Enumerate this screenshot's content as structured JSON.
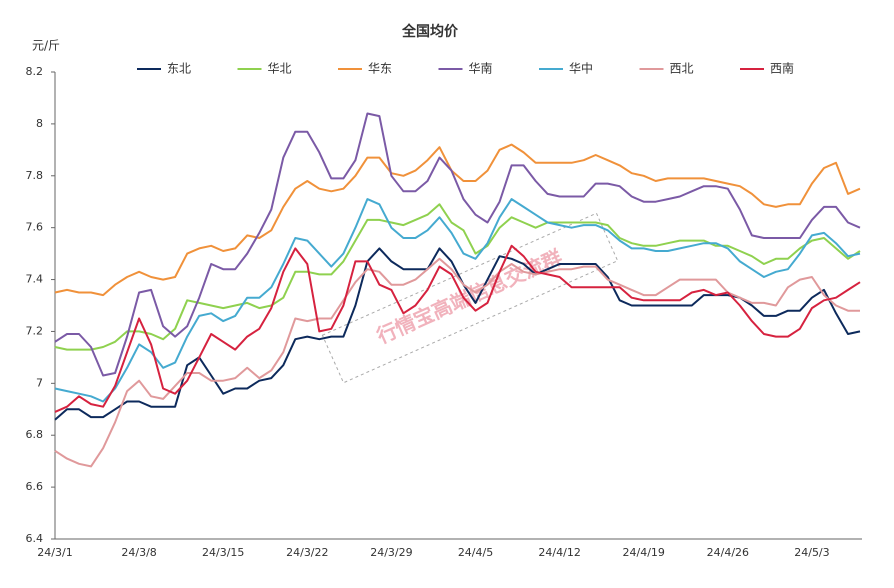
{
  "chart_data": {
    "type": "line",
    "title": "全国均价",
    "y_label": "元/斤",
    "annotation": "行情宝高端信息交流群",
    "categories": [
      "24/3/1",
      null,
      null,
      null,
      null,
      null,
      null,
      "24/3/8",
      null,
      null,
      null,
      null,
      null,
      null,
      "24/3/15",
      null,
      null,
      null,
      null,
      null,
      null,
      "24/3/22",
      null,
      null,
      null,
      null,
      null,
      null,
      "24/3/29",
      null,
      null,
      null,
      null,
      null,
      null,
      "24/4/5",
      null,
      null,
      null,
      null,
      null,
      null,
      "24/4/12",
      null,
      null,
      null,
      null,
      null,
      null,
      "24/4/19",
      null,
      null,
      null,
      null,
      null,
      null,
      "24/4/26",
      null,
      null,
      null,
      null,
      null,
      null,
      "24/5/3",
      null,
      null,
      null,
      null
    ],
    "ylim": [
      6.4,
      8.2
    ],
    "yticks": [
      6.4,
      6.6,
      6.8,
      7,
      7.2,
      7.4,
      7.6,
      7.8,
      8,
      8.2
    ],
    "grid": false,
    "legend": "top",
    "series": [
      {
        "name": "东北",
        "color": "#0d2a5c",
        "values": [
          6.86,
          6.9,
          6.9,
          6.87,
          6.87,
          6.9,
          6.93,
          6.93,
          6.91,
          6.91,
          6.91,
          7.07,
          7.1,
          7.03,
          6.96,
          6.98,
          6.98,
          7.01,
          7.02,
          7.07,
          7.17,
          7.18,
          7.17,
          7.18,
          7.18,
          7.3,
          7.47,
          7.52,
          7.47,
          7.44,
          7.44,
          7.44,
          7.52,
          7.47,
          7.38,
          7.31,
          7.4,
          7.49,
          7.48,
          7.46,
          7.42,
          7.44,
          7.46,
          7.46,
          7.46,
          7.46,
          7.41,
          7.32,
          7.3,
          7.3,
          7.3,
          7.3,
          7.3,
          7.3,
          7.34,
          7.34,
          7.34,
          7.33,
          7.3,
          7.26,
          7.26,
          7.28,
          7.28,
          7.33,
          7.36,
          7.27,
          7.19,
          7.2
        ]
      },
      {
        "name": "华北",
        "color": "#8fd14f",
        "values": [
          7.14,
          7.13,
          7.13,
          7.13,
          7.14,
          7.16,
          7.2,
          7.2,
          7.19,
          7.17,
          7.21,
          7.32,
          7.31,
          7.3,
          7.29,
          7.3,
          7.31,
          7.29,
          7.3,
          7.33,
          7.43,
          7.43,
          7.42,
          7.42,
          7.47,
          7.55,
          7.63,
          7.63,
          7.62,
          7.61,
          7.63,
          7.65,
          7.69,
          7.62,
          7.59,
          7.5,
          7.53,
          7.6,
          7.64,
          7.62,
          7.6,
          7.62,
          7.62,
          7.62,
          7.62,
          7.62,
          7.61,
          7.56,
          7.54,
          7.53,
          7.53,
          7.54,
          7.55,
          7.55,
          7.55,
          7.53,
          7.53,
          7.51,
          7.49,
          7.46,
          7.48,
          7.48,
          7.52,
          7.55,
          7.56,
          7.52,
          7.48,
          7.51
        ]
      },
      {
        "name": "华东",
        "color": "#f0913a",
        "values": [
          7.35,
          7.36,
          7.35,
          7.35,
          7.34,
          7.38,
          7.41,
          7.43,
          7.41,
          7.4,
          7.41,
          7.5,
          7.52,
          7.53,
          7.51,
          7.52,
          7.57,
          7.56,
          7.59,
          7.68,
          7.75,
          7.78,
          7.75,
          7.74,
          7.75,
          7.8,
          7.87,
          7.87,
          7.81,
          7.8,
          7.82,
          7.86,
          7.91,
          7.82,
          7.78,
          7.78,
          7.82,
          7.9,
          7.92,
          7.89,
          7.85,
          7.85,
          7.85,
          7.85,
          7.86,
          7.88,
          7.86,
          7.84,
          7.81,
          7.8,
          7.78,
          7.79,
          7.79,
          7.79,
          7.79,
          7.78,
          7.77,
          7.76,
          7.73,
          7.69,
          7.68,
          7.69,
          7.69,
          7.77,
          7.83,
          7.85,
          7.73,
          7.75
        ]
      },
      {
        "name": "华南",
        "color": "#7b5aa6",
        "values": [
          7.16,
          7.19,
          7.19,
          7.14,
          7.03,
          7.04,
          7.18,
          7.35,
          7.36,
          7.22,
          7.18,
          7.22,
          7.33,
          7.46,
          7.44,
          7.44,
          7.5,
          7.58,
          7.67,
          7.87,
          7.97,
          7.97,
          7.89,
          7.79,
          7.79,
          7.86,
          8.04,
          8.03,
          7.8,
          7.74,
          7.74,
          7.78,
          7.87,
          7.82,
          7.71,
          7.65,
          7.62,
          7.7,
          7.84,
          7.84,
          7.78,
          7.73,
          7.72,
          7.72,
          7.72,
          7.77,
          7.77,
          7.76,
          7.72,
          7.7,
          7.7,
          7.71,
          7.72,
          7.74,
          7.76,
          7.76,
          7.75,
          7.67,
          7.57,
          7.56,
          7.56,
          7.56,
          7.56,
          7.63,
          7.68,
          7.68,
          7.62,
          7.6
        ]
      },
      {
        "name": "华中",
        "color": "#45aad0",
        "values": [
          6.98,
          6.97,
          6.96,
          6.95,
          6.93,
          6.98,
          7.06,
          7.15,
          7.12,
          7.06,
          7.08,
          7.18,
          7.26,
          7.27,
          7.24,
          7.26,
          7.33,
          7.33,
          7.37,
          7.46,
          7.56,
          7.55,
          7.5,
          7.45,
          7.5,
          7.6,
          7.71,
          7.69,
          7.6,
          7.56,
          7.56,
          7.59,
          7.64,
          7.58,
          7.5,
          7.48,
          7.54,
          7.64,
          7.71,
          7.68,
          7.65,
          7.62,
          7.61,
          7.6,
          7.61,
          7.61,
          7.59,
          7.55,
          7.52,
          7.52,
          7.51,
          7.51,
          7.52,
          7.53,
          7.54,
          7.54,
          7.52,
          7.47,
          7.44,
          7.41,
          7.43,
          7.44,
          7.5,
          7.57,
          7.58,
          7.54,
          7.49,
          7.5
        ]
      },
      {
        "name": "西北",
        "color": "#e0999b",
        "values": [
          6.74,
          6.71,
          6.69,
          6.68,
          6.75,
          6.85,
          6.97,
          7.01,
          6.95,
          6.94,
          6.99,
          7.04,
          7.04,
          7.01,
          7.01,
          7.02,
          7.06,
          7.02,
          7.05,
          7.12,
          7.25,
          7.24,
          7.25,
          7.25,
          7.32,
          7.39,
          7.44,
          7.43,
          7.38,
          7.38,
          7.4,
          7.44,
          7.48,
          7.44,
          7.38,
          7.35,
          7.38,
          7.43,
          7.46,
          7.43,
          7.42,
          7.43,
          7.44,
          7.44,
          7.45,
          7.45,
          7.4,
          7.38,
          7.36,
          7.34,
          7.34,
          7.37,
          7.4,
          7.4,
          7.4,
          7.4,
          7.35,
          7.33,
          7.31,
          7.31,
          7.3,
          7.37,
          7.4,
          7.41,
          7.34,
          7.3,
          7.28,
          7.28
        ]
      },
      {
        "name": "西南",
        "color": "#d6223f",
        "values": [
          6.89,
          6.91,
          6.95,
          6.92,
          6.91,
          6.99,
          7.12,
          7.25,
          7.15,
          6.98,
          6.96,
          7.01,
          7.1,
          7.19,
          7.16,
          7.13,
          7.18,
          7.21,
          7.29,
          7.43,
          7.52,
          7.46,
          7.2,
          7.21,
          7.3,
          7.47,
          7.47,
          7.38,
          7.36,
          7.27,
          7.3,
          7.36,
          7.45,
          7.42,
          7.33,
          7.28,
          7.31,
          7.43,
          7.53,
          7.49,
          7.43,
          7.42,
          7.41,
          7.37,
          7.37,
          7.37,
          7.37,
          7.37,
          7.33,
          7.32,
          7.32,
          7.32,
          7.32,
          7.35,
          7.36,
          7.34,
          7.35,
          7.3,
          7.24,
          7.19,
          7.18,
          7.18,
          7.21,
          7.29,
          7.32,
          7.33,
          7.36,
          7.39
        ]
      }
    ]
  }
}
